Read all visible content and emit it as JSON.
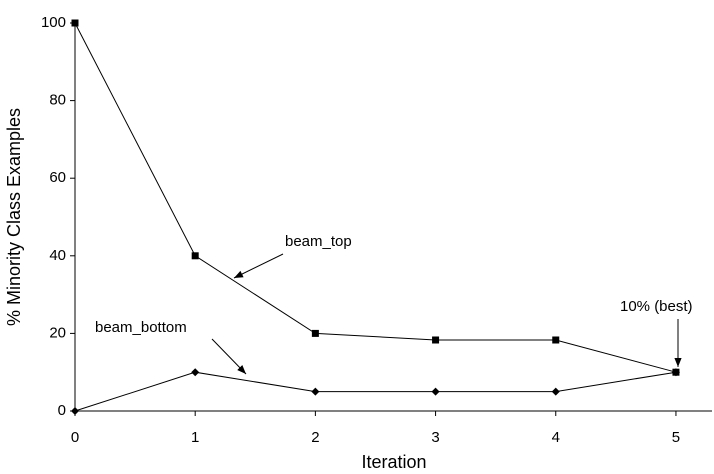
{
  "chart_data": {
    "type": "line",
    "x_label": "Iteration",
    "y_label": "% Minority Class Examples",
    "x": [
      0,
      1,
      2,
      3,
      4,
      5
    ],
    "series": [
      {
        "name": "beam_top",
        "color": "#000000",
        "marker": "square",
        "values": [
          100,
          40,
          20,
          18.3,
          18.3,
          10
        ]
      },
      {
        "name": "beam_bottom",
        "color": "#000000",
        "marker": "diamond",
        "values": [
          0,
          10,
          5,
          5,
          5,
          10
        ]
      }
    ],
    "annotations": [
      "10% (best)"
    ],
    "xlim": [
      0,
      5.3
    ],
    "xticks": [
      0,
      1,
      2,
      3,
      4,
      5
    ],
    "ylim": [
      0,
      100
    ],
    "yticks": [
      0,
      20,
      40,
      60,
      80,
      100
    ],
    "grid": false
  }
}
